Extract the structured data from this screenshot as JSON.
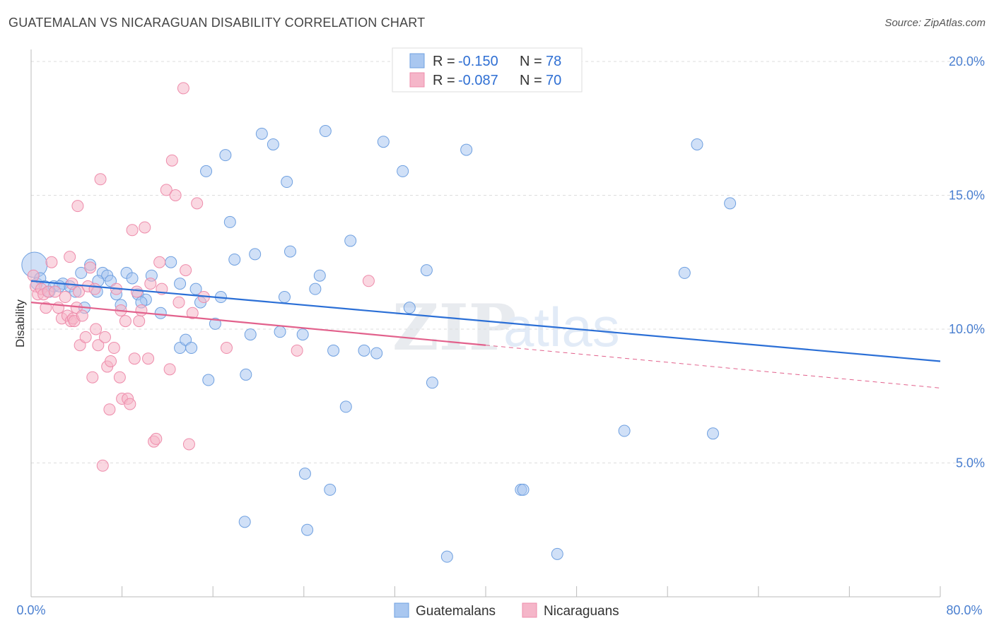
{
  "header": {
    "title": "GUATEMALAN VS NICARAGUAN DISABILITY CORRELATION CHART",
    "source": "Source: ZipAtlas.com"
  },
  "watermark": {
    "zip": "ZIP",
    "atlas": "atlas"
  },
  "legend_top": {
    "rows": [
      {
        "r_label": "R =",
        "r_value": "-0.150",
        "n_label": "N =",
        "n_value": "78",
        "color": "#a9c7f0"
      },
      {
        "r_label": "R =",
        "r_value": "-0.087",
        "n_label": "N =",
        "n_value": "70",
        "color": "#f5b6c9"
      }
    ]
  },
  "legend_bottom": {
    "items": [
      {
        "label": "Guatemalans",
        "color": "#a9c7f0"
      },
      {
        "label": "Nicaraguans",
        "color": "#f5b6c9"
      }
    ]
  },
  "chart_data": {
    "type": "scatter",
    "title": "GUATEMALAN VS NICARAGUAN DISABILITY CORRELATION CHART",
    "xlabel": "",
    "ylabel": "Disability",
    "xlim": [
      0,
      80
    ],
    "ylim": [
      0,
      20
    ],
    "x_tick_labels": [
      "0.0%",
      "80.0%"
    ],
    "y_ticks": [
      5,
      10,
      15,
      20
    ],
    "y_tick_labels": [
      "5.0%",
      "10.0%",
      "15.0%",
      "20.0%"
    ],
    "grid": true,
    "legend_position": "top-center",
    "series": [
      {
        "name": "Guatemalans",
        "color": "#6fa0e0",
        "fill": "#a9c7f0",
        "r": "-0.150",
        "n": "78",
        "trend": {
          "x0": 0,
          "y0": 11.8,
          "x1": 80,
          "y1": 8.8,
          "style": "solid",
          "line_color": "#2b6fd6"
        },
        "points": [
          [
            0.3,
            12.4
          ],
          [
            0.5,
            11.7
          ],
          [
            0.8,
            11.9
          ],
          [
            1.2,
            11.6
          ],
          [
            1.6,
            11.4
          ],
          [
            2,
            11.6
          ],
          [
            2.8,
            11.7
          ],
          [
            3.4,
            11.6
          ],
          [
            3.9,
            11.4
          ],
          [
            4.4,
            12.1
          ],
          [
            4.7,
            10.8
          ],
          [
            5.2,
            12.4
          ],
          [
            5.8,
            11.4
          ],
          [
            6.3,
            12.1
          ],
          [
            6.7,
            12
          ],
          [
            7,
            11.8
          ],
          [
            7.5,
            11.3
          ],
          [
            7.9,
            10.9
          ],
          [
            8.4,
            12.1
          ],
          [
            8.9,
            11.9
          ],
          [
            9.4,
            11.3
          ],
          [
            10.1,
            11.1
          ],
          [
            10.6,
            12
          ],
          [
            11.4,
            10.6
          ],
          [
            12.3,
            12.5
          ],
          [
            13.1,
            9.3
          ],
          [
            13.1,
            11.7
          ],
          [
            13.6,
            9.6
          ],
          [
            14.1,
            9.3
          ],
          [
            14.5,
            11.5
          ],
          [
            14.9,
            11
          ],
          [
            15.4,
            15.9
          ],
          [
            15.6,
            8.1
          ],
          [
            16.2,
            10.2
          ],
          [
            16.7,
            11.2
          ],
          [
            17.1,
            16.5
          ],
          [
            17.5,
            14
          ],
          [
            17.9,
            12.6
          ],
          [
            18.8,
            2.8
          ],
          [
            18.9,
            8.3
          ],
          [
            19.3,
            9.8
          ],
          [
            19.7,
            12.8
          ],
          [
            20.3,
            17.3
          ],
          [
            21.3,
            16.9
          ],
          [
            21.9,
            9.9
          ],
          [
            22.3,
            11.2
          ],
          [
            22.5,
            15.5
          ],
          [
            22.8,
            12.9
          ],
          [
            23.9,
            9.8
          ],
          [
            24.1,
            4.6
          ],
          [
            24.3,
            2.5
          ],
          [
            25,
            11.5
          ],
          [
            25.4,
            12
          ],
          [
            25.9,
            17.4
          ],
          [
            26.3,
            4
          ],
          [
            26.6,
            9.2
          ],
          [
            27.7,
            7.1
          ],
          [
            28.1,
            13.3
          ],
          [
            29.3,
            9.2
          ],
          [
            30.4,
            9.1
          ],
          [
            31,
            17
          ],
          [
            32.7,
            15.9
          ],
          [
            33.3,
            10.8
          ],
          [
            34.8,
            12.2
          ],
          [
            35.3,
            8
          ],
          [
            36.6,
            1.5
          ],
          [
            38.3,
            16.7
          ],
          [
            43.1,
            4
          ],
          [
            43.3,
            4
          ],
          [
            46.3,
            1.6
          ],
          [
            52.2,
            6.2
          ],
          [
            57.5,
            12.1
          ],
          [
            58.6,
            16.9
          ],
          [
            60,
            6.1
          ],
          [
            61.5,
            14.7
          ],
          [
            2.5,
            11.6
          ],
          [
            5.9,
            11.8
          ],
          [
            9.7,
            11
          ]
        ]
      },
      {
        "name": "Nicaraguans",
        "color": "#ee8cab",
        "fill": "#f5b6c9",
        "r": "-0.087",
        "n": "70",
        "trend": {
          "x0": 0,
          "y0": 11.0,
          "x1": 40,
          "y1": 9.4,
          "style": "solid",
          "line_color": "#e2618c",
          "dash_to_x": 80,
          "dash_to_y": 7.8
        },
        "points": [
          [
            0.2,
            12
          ],
          [
            0.4,
            11.6
          ],
          [
            0.6,
            11.3
          ],
          [
            0.9,
            11.5
          ],
          [
            1.1,
            11.3
          ],
          [
            1.3,
            10.8
          ],
          [
            1.5,
            11.4
          ],
          [
            1.8,
            12.5
          ],
          [
            2.1,
            11.4
          ],
          [
            2.4,
            10.8
          ],
          [
            2.7,
            10.4
          ],
          [
            3,
            11.2
          ],
          [
            3.2,
            10.5
          ],
          [
            3.4,
            12.7
          ],
          [
            3.5,
            10.3
          ],
          [
            3.6,
            11.7
          ],
          [
            3.7,
            10.4
          ],
          [
            3.8,
            10.3
          ],
          [
            4,
            10.8
          ],
          [
            4.1,
            14.6
          ],
          [
            4.2,
            11.4
          ],
          [
            4.3,
            9.4
          ],
          [
            4.5,
            10.5
          ],
          [
            4.8,
            9.7
          ],
          [
            5,
            11.6
          ],
          [
            5.2,
            12.3
          ],
          [
            5.4,
            8.2
          ],
          [
            5.6,
            11.5
          ],
          [
            5.7,
            10
          ],
          [
            5.9,
            9.4
          ],
          [
            6.1,
            15.6
          ],
          [
            6.3,
            4.9
          ],
          [
            6.5,
            9.7
          ],
          [
            6.7,
            8.6
          ],
          [
            6.9,
            7
          ],
          [
            7,
            8.8
          ],
          [
            7.3,
            9.3
          ],
          [
            7.5,
            11.5
          ],
          [
            7.8,
            8.2
          ],
          [
            7.9,
            10.7
          ],
          [
            8,
            7.4
          ],
          [
            8.3,
            10.3
          ],
          [
            8.5,
            7.4
          ],
          [
            8.7,
            7.2
          ],
          [
            8.9,
            13.7
          ],
          [
            9.1,
            8.9
          ],
          [
            9.3,
            11.4
          ],
          [
            9.5,
            10.3
          ],
          [
            9.7,
            10.7
          ],
          [
            10,
            13.8
          ],
          [
            10.3,
            8.9
          ],
          [
            10.5,
            11.7
          ],
          [
            10.8,
            5.8
          ],
          [
            11,
            5.9
          ],
          [
            11.3,
            12.5
          ],
          [
            11.5,
            11.5
          ],
          [
            11.9,
            15.2
          ],
          [
            12.2,
            8.5
          ],
          [
            12.4,
            16.3
          ],
          [
            12.7,
            15
          ],
          [
            13,
            11
          ],
          [
            13.4,
            19
          ],
          [
            13.6,
            12.2
          ],
          [
            13.9,
            5.7
          ],
          [
            14.2,
            10.6
          ],
          [
            14.6,
            14.7
          ],
          [
            15.2,
            11.2
          ],
          [
            17.2,
            9.3
          ],
          [
            23.4,
            9.2
          ],
          [
            29.7,
            11.8
          ]
        ]
      }
    ]
  }
}
